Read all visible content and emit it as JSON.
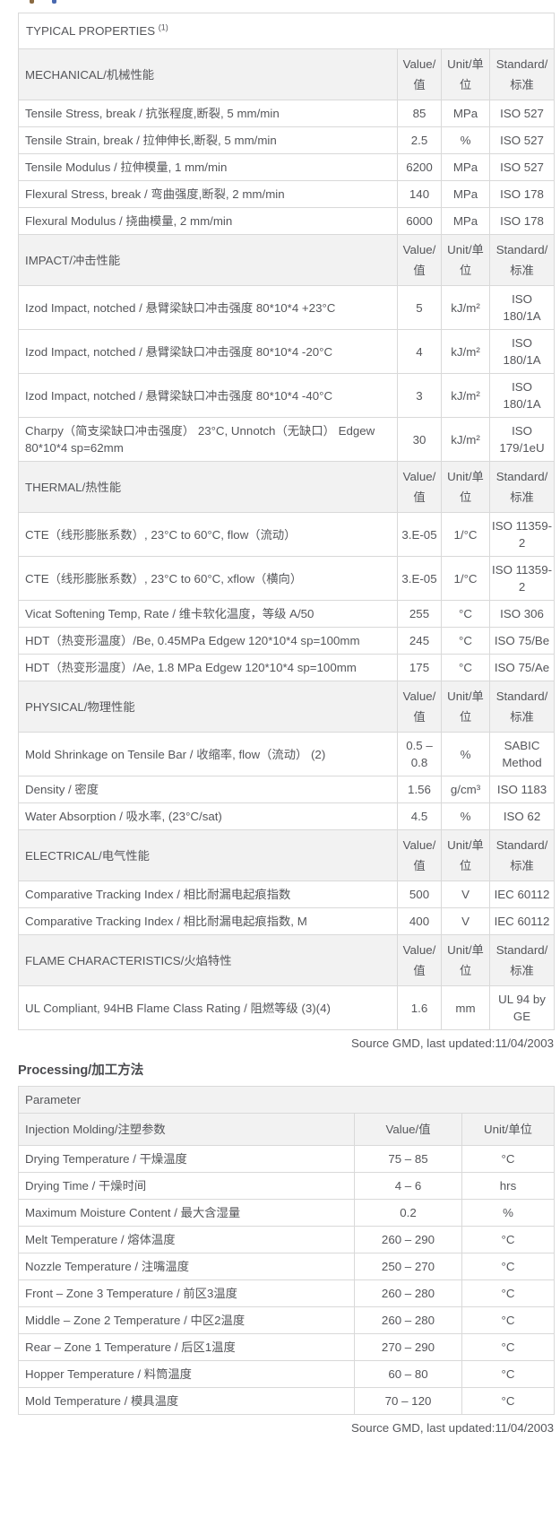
{
  "colors": {
    "section_header_bg": "#f2f2f2",
    "outer_border": "#3a3a3a",
    "inner_border": "#d9d9d9",
    "text": "#55565a"
  },
  "typical_properties": {
    "title": "TYPICAL PROPERTIES ",
    "title_sup": "(1)",
    "col_headers": {
      "value": "Value/值",
      "unit": "Unit/单位",
      "standard": "Standard/标准"
    },
    "sections": [
      {
        "name": "MECHANICAL/机械性能",
        "rows": [
          {
            "label": "Tensile Stress, break / 抗张程度,断裂, 5 mm/min",
            "value": "85",
            "unit": "MPa",
            "standard": "ISO 527"
          },
          {
            "label": "Tensile Strain, break / 拉伸伸长,断裂, 5 mm/min",
            "value": "2.5",
            "unit": "%",
            "standard": "ISO 527"
          },
          {
            "label": "Tensile Modulus / 拉伸模量, 1 mm/min",
            "value": "6200",
            "unit": "MPa",
            "standard": "ISO 527"
          },
          {
            "label": "Flexural Stress, break / 弯曲强度,断裂, 2 mm/min",
            "value": "140",
            "unit": "MPa",
            "standard": "ISO 178"
          },
          {
            "label": "Flexural Modulus / 挠曲模量, 2 mm/min",
            "value": "6000",
            "unit": "MPa",
            "standard": "ISO 178"
          }
        ]
      },
      {
        "name": "IMPACT/冲击性能",
        "rows": [
          {
            "label": "Izod Impact, notched / 悬臂梁缺口冲击强度 80*10*4 +23°C",
            "value": "5",
            "unit": "kJ/m²",
            "standard": "ISO 180/1A"
          },
          {
            "label": "Izod Impact, notched / 悬臂梁缺口冲击强度 80*10*4 -20°C",
            "value": "4",
            "unit": "kJ/m²",
            "standard": "ISO 180/1A"
          },
          {
            "label": "Izod Impact, notched / 悬臂梁缺口冲击强度 80*10*4 -40°C",
            "value": "3",
            "unit": "kJ/m²",
            "standard": "ISO 180/1A"
          },
          {
            "label": "Charpy（简支梁缺口冲击强度） 23°C, Unnotch（无缺口） Edgew 80*10*4 sp=62mm",
            "value": "30",
            "unit": "kJ/m²",
            "standard": "ISO 179/1eU"
          }
        ]
      },
      {
        "name": "THERMAL/热性能",
        "rows": [
          {
            "label": "CTE（线形膨胀系数）, 23°C to 60°C, flow（流动）",
            "value": "3.E-05",
            "unit": "1/°C",
            "standard": "ISO 11359-2"
          },
          {
            "label": "CTE（线形膨胀系数）, 23°C to 60°C, xflow（横向）",
            "value": "3.E-05",
            "unit": "1/°C",
            "standard": "ISO 11359-2"
          },
          {
            "label": "Vicat Softening Temp, Rate / 维卡软化温度，等级 A/50",
            "value": "255",
            "unit": "°C",
            "standard": "ISO 306"
          },
          {
            "label": "HDT（热变形温度）/Be, 0.45MPa Edgew 120*10*4 sp=100mm",
            "value": "245",
            "unit": "°C",
            "standard": "ISO 75/Be"
          },
          {
            "label": "HDT（热变形温度）/Ae, 1.8 MPa Edgew 120*10*4 sp=100mm",
            "value": "175",
            "unit": "°C",
            "standard": "ISO 75/Ae"
          }
        ]
      },
      {
        "name": "PHYSICAL/物理性能",
        "rows": [
          {
            "label": "Mold Shrinkage on Tensile Bar / 收缩率, flow（流动） (2)",
            "value": "0.5 – 0.8",
            "unit": "%",
            "standard": "SABIC Method"
          },
          {
            "label": "Density / 密度",
            "value": "1.56",
            "unit": "g/cm³",
            "standard": "ISO 1183"
          },
          {
            "label": "Water Absorption / 吸水率, (23°C/sat)",
            "value": "4.5",
            "unit": "%",
            "standard": "ISO 62"
          }
        ]
      },
      {
        "name": "ELECTRICAL/电气性能",
        "rows": [
          {
            "label": "Comparative Tracking Index / 相比耐漏电起痕指数",
            "value": "500",
            "unit": "V",
            "standard": "IEC 60112"
          },
          {
            "label": "Comparative Tracking Index / 相比耐漏电起痕指数, M",
            "value": "400",
            "unit": "V",
            "standard": "IEC 60112"
          }
        ]
      },
      {
        "name": "FLAME CHARACTERISTICS/火焰特性",
        "rows": [
          {
            "label": "UL Compliant, 94HB Flame Class Rating / 阻燃等级 (3)(4)",
            "value": "1.6",
            "unit": "mm",
            "standard": "UL 94 by GE"
          }
        ]
      }
    ],
    "source_note": "Source GMD, last updated:11/04/2003"
  },
  "processing": {
    "heading": "Processing/加工方法",
    "param_header": "Parameter",
    "subheader": {
      "label": "Injection Molding/注塑参数",
      "value": "Value/值",
      "unit": "Unit/单位"
    },
    "rows": [
      {
        "label": "Drying Temperature / 干燥温度",
        "value": "75 – 85",
        "unit": "°C"
      },
      {
        "label": "Drying Time / 干燥时间",
        "value": "4 – 6",
        "unit": "hrs"
      },
      {
        "label": "Maximum Moisture Content / 最大含湿量",
        "value": "0.2",
        "unit": "%"
      },
      {
        "label": "Melt Temperature / 熔体温度",
        "value": "260 – 290",
        "unit": "°C"
      },
      {
        "label": "Nozzle Temperature / 注嘴温度",
        "value": "250 – 270",
        "unit": "°C"
      },
      {
        "label": "Front – Zone 3 Temperature / 前区3温度",
        "value": "260 – 280",
        "unit": "°C"
      },
      {
        "label": "Middle – Zone 2 Temperature / 中区2温度",
        "value": "260 – 280",
        "unit": "°C"
      },
      {
        "label": "Rear – Zone 1 Temperature / 后区1温度",
        "value": "270 – 290",
        "unit": "°C"
      },
      {
        "label": "Hopper Temperature / 料筒温度",
        "value": "60 – 80",
        "unit": "°C"
      },
      {
        "label": "Mold Temperature / 模具温度",
        "value": "70 – 120",
        "unit": "°C"
      }
    ],
    "source_note": "Source GMD, last updated:11/04/2003"
  }
}
